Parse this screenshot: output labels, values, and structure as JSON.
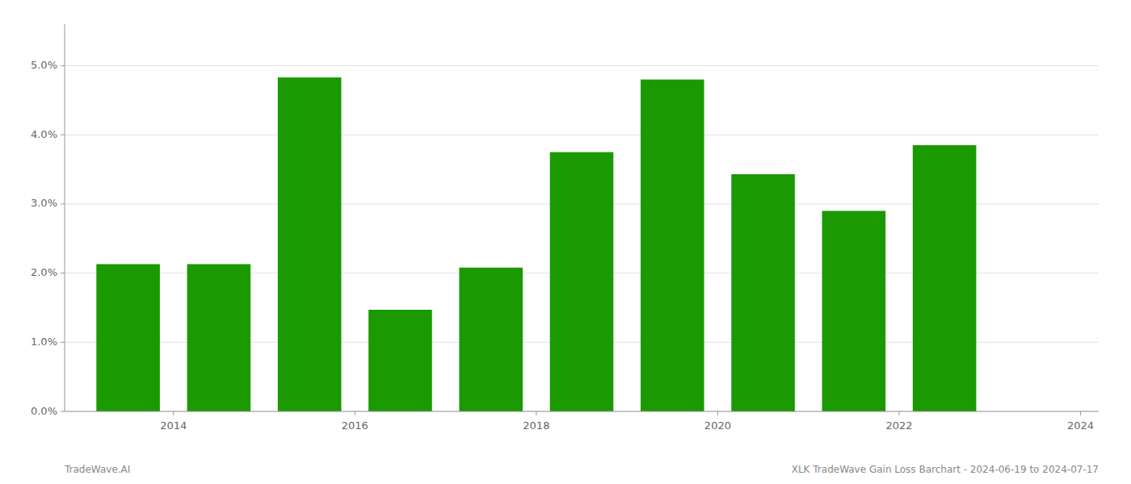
{
  "chart_data": {
    "type": "bar",
    "x": [
      2014,
      2015,
      2016,
      2017,
      2018,
      2019,
      2020,
      2021,
      2022,
      2023
    ],
    "values": [
      0.0213,
      0.0213,
      0.0483,
      0.0147,
      0.0208,
      0.0375,
      0.048,
      0.0343,
      0.029,
      0.0385
    ],
    "color": "#1a9a00",
    "xlim": [
      2013.3,
      2024.7
    ],
    "xticks": [
      {
        "value": 2014.5,
        "label": "2014"
      },
      {
        "value": 2016.5,
        "label": "2016"
      },
      {
        "value": 2018.5,
        "label": "2018"
      },
      {
        "value": 2020.5,
        "label": "2020"
      },
      {
        "value": 2022.5,
        "label": "2022"
      },
      {
        "value": 2024.5,
        "label": "2024"
      }
    ],
    "ylim": [
      0,
      0.056
    ],
    "yticks": [
      {
        "value": 0.0,
        "label": "0.0%"
      },
      {
        "value": 0.01,
        "label": "1.0%"
      },
      {
        "value": 0.02,
        "label": "2.0%"
      },
      {
        "value": 0.03,
        "label": "3.0%"
      },
      {
        "value": 0.04,
        "label": "4.0%"
      },
      {
        "value": 0.05,
        "label": "5.0%"
      }
    ],
    "grid": true,
    "annotations": [
      "TradeWave.AI",
      "XLK TradeWave Gain Loss Barchart - 2024-06-19 to 2024-07-17"
    ]
  }
}
